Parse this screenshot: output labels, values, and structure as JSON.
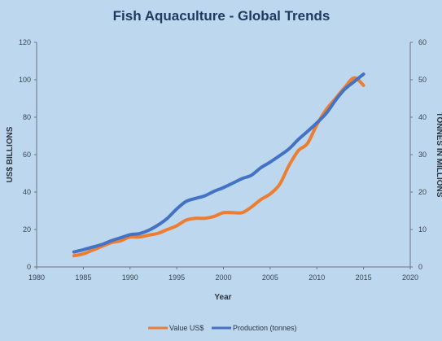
{
  "colors": {
    "background": "#bcd7ee",
    "title": "#1f3a60",
    "axis": "#5a6470",
    "value_series": "#ed7d31",
    "production_series": "#4472c4"
  },
  "chart_data": {
    "type": "line",
    "title": "Fish Aquaculture - Global Trends",
    "xlabel": "Year",
    "ylabel_left": "US$ BILLIONS",
    "ylabel_right": "TONNES IN MILLIONS",
    "xlim": [
      1980,
      2020
    ],
    "ylim_left": [
      0,
      120
    ],
    "ylim_right": [
      0,
      60
    ],
    "x_ticks": [
      1980,
      1985,
      1990,
      1995,
      2000,
      2005,
      2010,
      2015,
      2020
    ],
    "y_ticks_left": [
      0,
      20,
      40,
      60,
      80,
      100,
      120
    ],
    "y_ticks_right": [
      0,
      10,
      20,
      30,
      40,
      50,
      60
    ],
    "grid": false,
    "legend_position": "bottom",
    "series": [
      {
        "name": "Value US$",
        "axis": "left",
        "color": "#ed7d31",
        "x": [
          1984,
          1985,
          1986,
          1987,
          1988,
          1989,
          1990,
          1991,
          1992,
          1993,
          1994,
          1995,
          1996,
          1997,
          1998,
          1999,
          2000,
          2001,
          2002,
          2003,
          2004,
          2005,
          2006,
          2007,
          2008,
          2009,
          2010,
          2011,
          2012,
          2013,
          2014,
          2015
        ],
        "values": [
          6,
          7,
          9,
          11,
          13,
          14,
          16,
          16,
          17,
          18,
          20,
          22,
          25,
          26,
          26,
          27,
          29,
          29,
          29,
          32,
          36,
          39,
          44,
          54,
          62,
          66,
          76,
          84,
          90,
          96,
          101,
          97
        ]
      },
      {
        "name": "Production (tonnes)",
        "axis": "right",
        "color": "#4472c4",
        "x": [
          1984,
          1985,
          1986,
          1987,
          1988,
          1989,
          1990,
          1991,
          1992,
          1993,
          1994,
          1995,
          1996,
          1997,
          1998,
          1999,
          2000,
          2001,
          2002,
          2003,
          2004,
          2005,
          2006,
          2007,
          2008,
          2009,
          2010,
          2011,
          2012,
          2013,
          2014,
          2015
        ],
        "values": [
          4,
          4.6,
          5.3,
          6,
          7,
          7.8,
          8.6,
          8.9,
          9.8,
          11.2,
          13,
          15.5,
          17.5,
          18.3,
          19,
          20.2,
          21.2,
          22.4,
          23.6,
          24.5,
          26.5,
          28,
          29.7,
          31.5,
          34,
          36.2,
          38.5,
          41,
          44.5,
          47.5,
          49.5,
          51.5
        ]
      }
    ]
  }
}
